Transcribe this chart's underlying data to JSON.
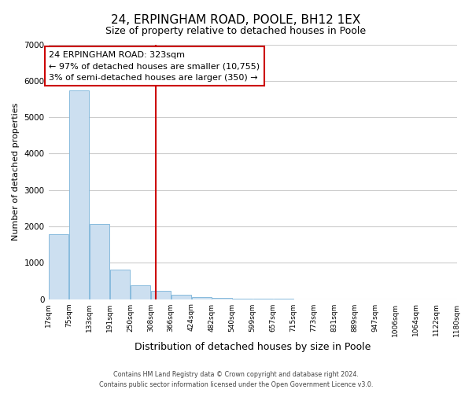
{
  "title": "24, ERPINGHAM ROAD, POOLE, BH12 1EX",
  "subtitle": "Size of property relative to detached houses in Poole",
  "xlabel": "Distribution of detached houses by size in Poole",
  "ylabel": "Number of detached properties",
  "bar_edges": [
    17,
    75,
    133,
    191,
    250,
    308,
    366,
    424,
    482,
    540,
    599,
    657,
    715,
    773,
    831,
    889,
    947,
    1006,
    1064,
    1122,
    1180
  ],
  "bar_heights": [
    1780,
    5740,
    2060,
    820,
    370,
    220,
    110,
    55,
    30,
    10,
    5,
    2,
    1,
    0,
    0,
    0,
    0,
    0,
    0,
    0
  ],
  "bar_color": "#ccdff0",
  "bar_edge_color": "#88bbdd",
  "property_line_x": 323,
  "ylim": [
    0,
    7000
  ],
  "annotation_title": "24 ERPINGHAM ROAD: 323sqm",
  "annotation_line1": "← 97% of detached houses are smaller (10,755)",
  "annotation_line2": "3% of semi-detached houses are larger (350) →",
  "annotation_box_color": "#ffffff",
  "annotation_box_edge": "#cc0000",
  "footer_line1": "Contains HM Land Registry data © Crown copyright and database right 2024.",
  "footer_line2": "Contains public sector information licensed under the Open Government Licence v3.0.",
  "tick_labels": [
    "17sqm",
    "75sqm",
    "133sqm",
    "191sqm",
    "250sqm",
    "308sqm",
    "366sqm",
    "424sqm",
    "482sqm",
    "540sqm",
    "599sqm",
    "657sqm",
    "715sqm",
    "773sqm",
    "831sqm",
    "889sqm",
    "947sqm",
    "1006sqm",
    "1064sqm",
    "1122sqm",
    "1180sqm"
  ],
  "grid_color": "#cccccc",
  "background_color": "#ffffff",
  "line_color": "#cc0000",
  "title_fontsize": 11,
  "subtitle_fontsize": 9,
  "xlabel_fontsize": 9,
  "ylabel_fontsize": 8,
  "tick_fontsize": 6.5,
  "annotation_fontsize": 8,
  "footer_fontsize": 5.8
}
